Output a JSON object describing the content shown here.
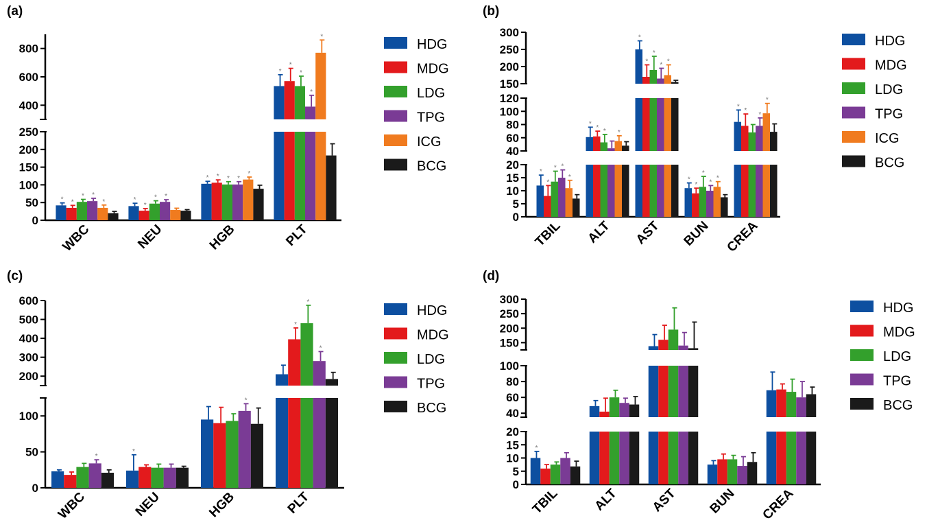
{
  "chart_data": [
    {
      "panel_label": "(a)",
      "type": "bar",
      "categories": [
        "WBC",
        "NEU",
        "HGB",
        "PLT"
      ],
      "series": [
        {
          "name": "HDG",
          "values": [
            42,
            40,
            103,
            535
          ],
          "errors": [
            7,
            8,
            7,
            80
          ],
          "sig": [
            true,
            true,
            true,
            true
          ]
        },
        {
          "name": "MDG",
          "values": [
            35,
            27,
            106,
            570
          ],
          "errors": [
            7,
            6,
            8,
            90
          ],
          "sig": [
            true,
            true,
            true,
            true
          ]
        },
        {
          "name": "LDG",
          "values": [
            52,
            47,
            101,
            535
          ],
          "errors": [
            7,
            8,
            8,
            70
          ],
          "sig": [
            true,
            true,
            true,
            true
          ]
        },
        {
          "name": "TPG",
          "values": [
            54,
            52,
            101,
            390
          ],
          "errors": [
            8,
            6,
            8,
            80
          ],
          "sig": [
            true,
            true,
            true,
            true
          ]
        },
        {
          "name": "ICG",
          "values": [
            35,
            29,
            115,
            770
          ],
          "errors": [
            8,
            5,
            7,
            90
          ],
          "sig": [
            true,
            false,
            true,
            true
          ]
        },
        {
          "name": "BCG",
          "values": [
            20,
            27,
            89,
            183
          ],
          "errors": [
            5,
            3,
            10,
            33
          ],
          "sig": [
            false,
            false,
            false,
            false
          ]
        }
      ],
      "y_axis_segments": [
        {
          "range": [
            0,
            250
          ],
          "ticks": [
            "0",
            "50",
            "100",
            "150",
            "200",
            "250"
          ]
        },
        {
          "range": [
            300,
            900
          ],
          "ticks": [
            "400",
            "600",
            "800"
          ]
        }
      ]
    },
    {
      "panel_label": "(b)",
      "type": "bar",
      "categories": [
        "TBIL",
        "ALT",
        "AST",
        "BUN",
        "CREA"
      ],
      "series": [
        {
          "name": "HDG",
          "values": [
            12,
            61,
            250,
            11,
            84
          ],
          "errors": [
            4,
            15,
            25,
            2,
            18
          ],
          "sig": [
            true,
            true,
            true,
            true,
            true
          ]
        },
        {
          "name": "MDG",
          "values": [
            8,
            62,
            170,
            9,
            78
          ],
          "errors": [
            4,
            8,
            35,
            2,
            18
          ],
          "sig": [
            true,
            true,
            true,
            true,
            true
          ]
        },
        {
          "name": "LDG",
          "values": [
            13.5,
            53,
            190,
            11.5,
            68
          ],
          "errors": [
            4,
            12,
            40,
            4,
            12
          ],
          "sig": [
            true,
            true,
            true,
            true,
            false
          ]
        },
        {
          "name": "TPG",
          "values": [
            15,
            44,
            165,
            10,
            78
          ],
          "errors": [
            3,
            11,
            30,
            2,
            12
          ],
          "sig": [
            true,
            false,
            true,
            true,
            true
          ]
        },
        {
          "name": "ICG",
          "values": [
            11,
            55,
            175,
            11.5,
            97
          ],
          "errors": [
            3,
            8,
            30,
            2,
            15
          ],
          "sig": [
            true,
            true,
            true,
            true,
            true
          ]
        },
        {
          "name": "BCG",
          "values": [
            7,
            48,
            155,
            7.5,
            69
          ],
          "errors": [
            1.5,
            6,
            5,
            1,
            12
          ],
          "sig": [
            false,
            false,
            false,
            false,
            false
          ]
        }
      ],
      "y_axis_segments": [
        {
          "range": [
            0,
            20
          ],
          "ticks": [
            "0",
            "5",
            "10",
            "15",
            "20"
          ]
        },
        {
          "range": [
            40,
            120
          ],
          "ticks": [
            "40",
            "60",
            "80",
            "100",
            "120"
          ]
        },
        {
          "range": [
            150,
            300
          ],
          "ticks": [
            "150",
            "200",
            "250",
            "300"
          ]
        }
      ]
    },
    {
      "panel_label": "(c)",
      "type": "bar",
      "categories": [
        "WBC",
        "NEU",
        "HGB",
        "PLT"
      ],
      "series": [
        {
          "name": "HDG",
          "values": [
            23,
            24,
            95,
            210
          ],
          "errors": [
            2,
            22,
            18,
            48
          ],
          "sig": [
            false,
            true,
            false,
            false
          ]
        },
        {
          "name": "MDG",
          "values": [
            18,
            29,
            90,
            395
          ],
          "errors": [
            4,
            3,
            22,
            60
          ],
          "sig": [
            false,
            false,
            false,
            true
          ]
        },
        {
          "name": "LDG",
          "values": [
            29,
            28,
            93,
            480
          ],
          "errors": [
            5,
            5,
            10,
            95
          ],
          "sig": [
            false,
            false,
            false,
            true
          ]
        },
        {
          "name": "TPG",
          "values": [
            34,
            28,
            107,
            280
          ],
          "errors": [
            5,
            5,
            10,
            50
          ],
          "sig": [
            true,
            false,
            true,
            true
          ]
        },
        {
          "name": "BCG",
          "values": [
            21,
            28,
            89,
            185
          ],
          "errors": [
            4,
            2,
            22,
            35
          ],
          "sig": [
            false,
            false,
            false,
            false
          ]
        }
      ],
      "y_axis_segments": [
        {
          "range": [
            0,
            125
          ],
          "ticks": [
            "0",
            "50",
            "100"
          ]
        },
        {
          "range": [
            150,
            600
          ],
          "ticks": [
            "200",
            "300",
            "400",
            "500",
            "600"
          ]
        }
      ]
    },
    {
      "panel_label": "(d)",
      "type": "bar",
      "categories": [
        "TBIL",
        "ALT",
        "AST",
        "BUN",
        "CREA"
      ],
      "series": [
        {
          "name": "HDG",
          "values": [
            10,
            49,
            138,
            7.5,
            69
          ],
          "errors": [
            2.5,
            7,
            40,
            1.5,
            23
          ],
          "sig": [
            true,
            false,
            false,
            false,
            false
          ]
        },
        {
          "name": "MDG",
          "values": [
            6,
            42,
            160,
            9.5,
            70
          ],
          "errors": [
            1.5,
            17,
            50,
            2,
            7
          ],
          "sig": [
            false,
            false,
            false,
            false,
            false
          ]
        },
        {
          "name": "LDG",
          "values": [
            7.5,
            60,
            195,
            9.5,
            67
          ],
          "errors": [
            1,
            9,
            75,
            1.5,
            16
          ],
          "sig": [
            false,
            false,
            false,
            false,
            false
          ]
        },
        {
          "name": "TPG",
          "values": [
            10,
            53,
            140,
            7,
            60
          ],
          "errors": [
            2,
            6,
            45,
            3.5,
            20
          ],
          "sig": [
            false,
            false,
            false,
            false,
            false
          ]
        },
        {
          "name": "BCG",
          "values": [
            6.8,
            51,
            131,
            8.5,
            64
          ],
          "errors": [
            2,
            10,
            90,
            3.5,
            9
          ],
          "sig": [
            false,
            false,
            false,
            false,
            false
          ]
        }
      ],
      "y_axis_segments": [
        {
          "range": [
            0,
            20
          ],
          "ticks": [
            "0",
            "5",
            "10",
            "15",
            "20"
          ]
        },
        {
          "range": [
            35,
            100
          ],
          "ticks": [
            "40",
            "60",
            "80",
            "100"
          ]
        },
        {
          "range": [
            125,
            300
          ],
          "ticks": [
            "150",
            "200",
            "250",
            "300"
          ]
        }
      ]
    }
  ],
  "legend_colors": {
    "HDG": "#0d4fa0",
    "MDG": "#e31a1c",
    "LDG": "#33a02c",
    "TPG": "#7a3b95",
    "ICG": "#f07b1f",
    "BCG": "#1a1a1a"
  },
  "star_symbol": "*"
}
